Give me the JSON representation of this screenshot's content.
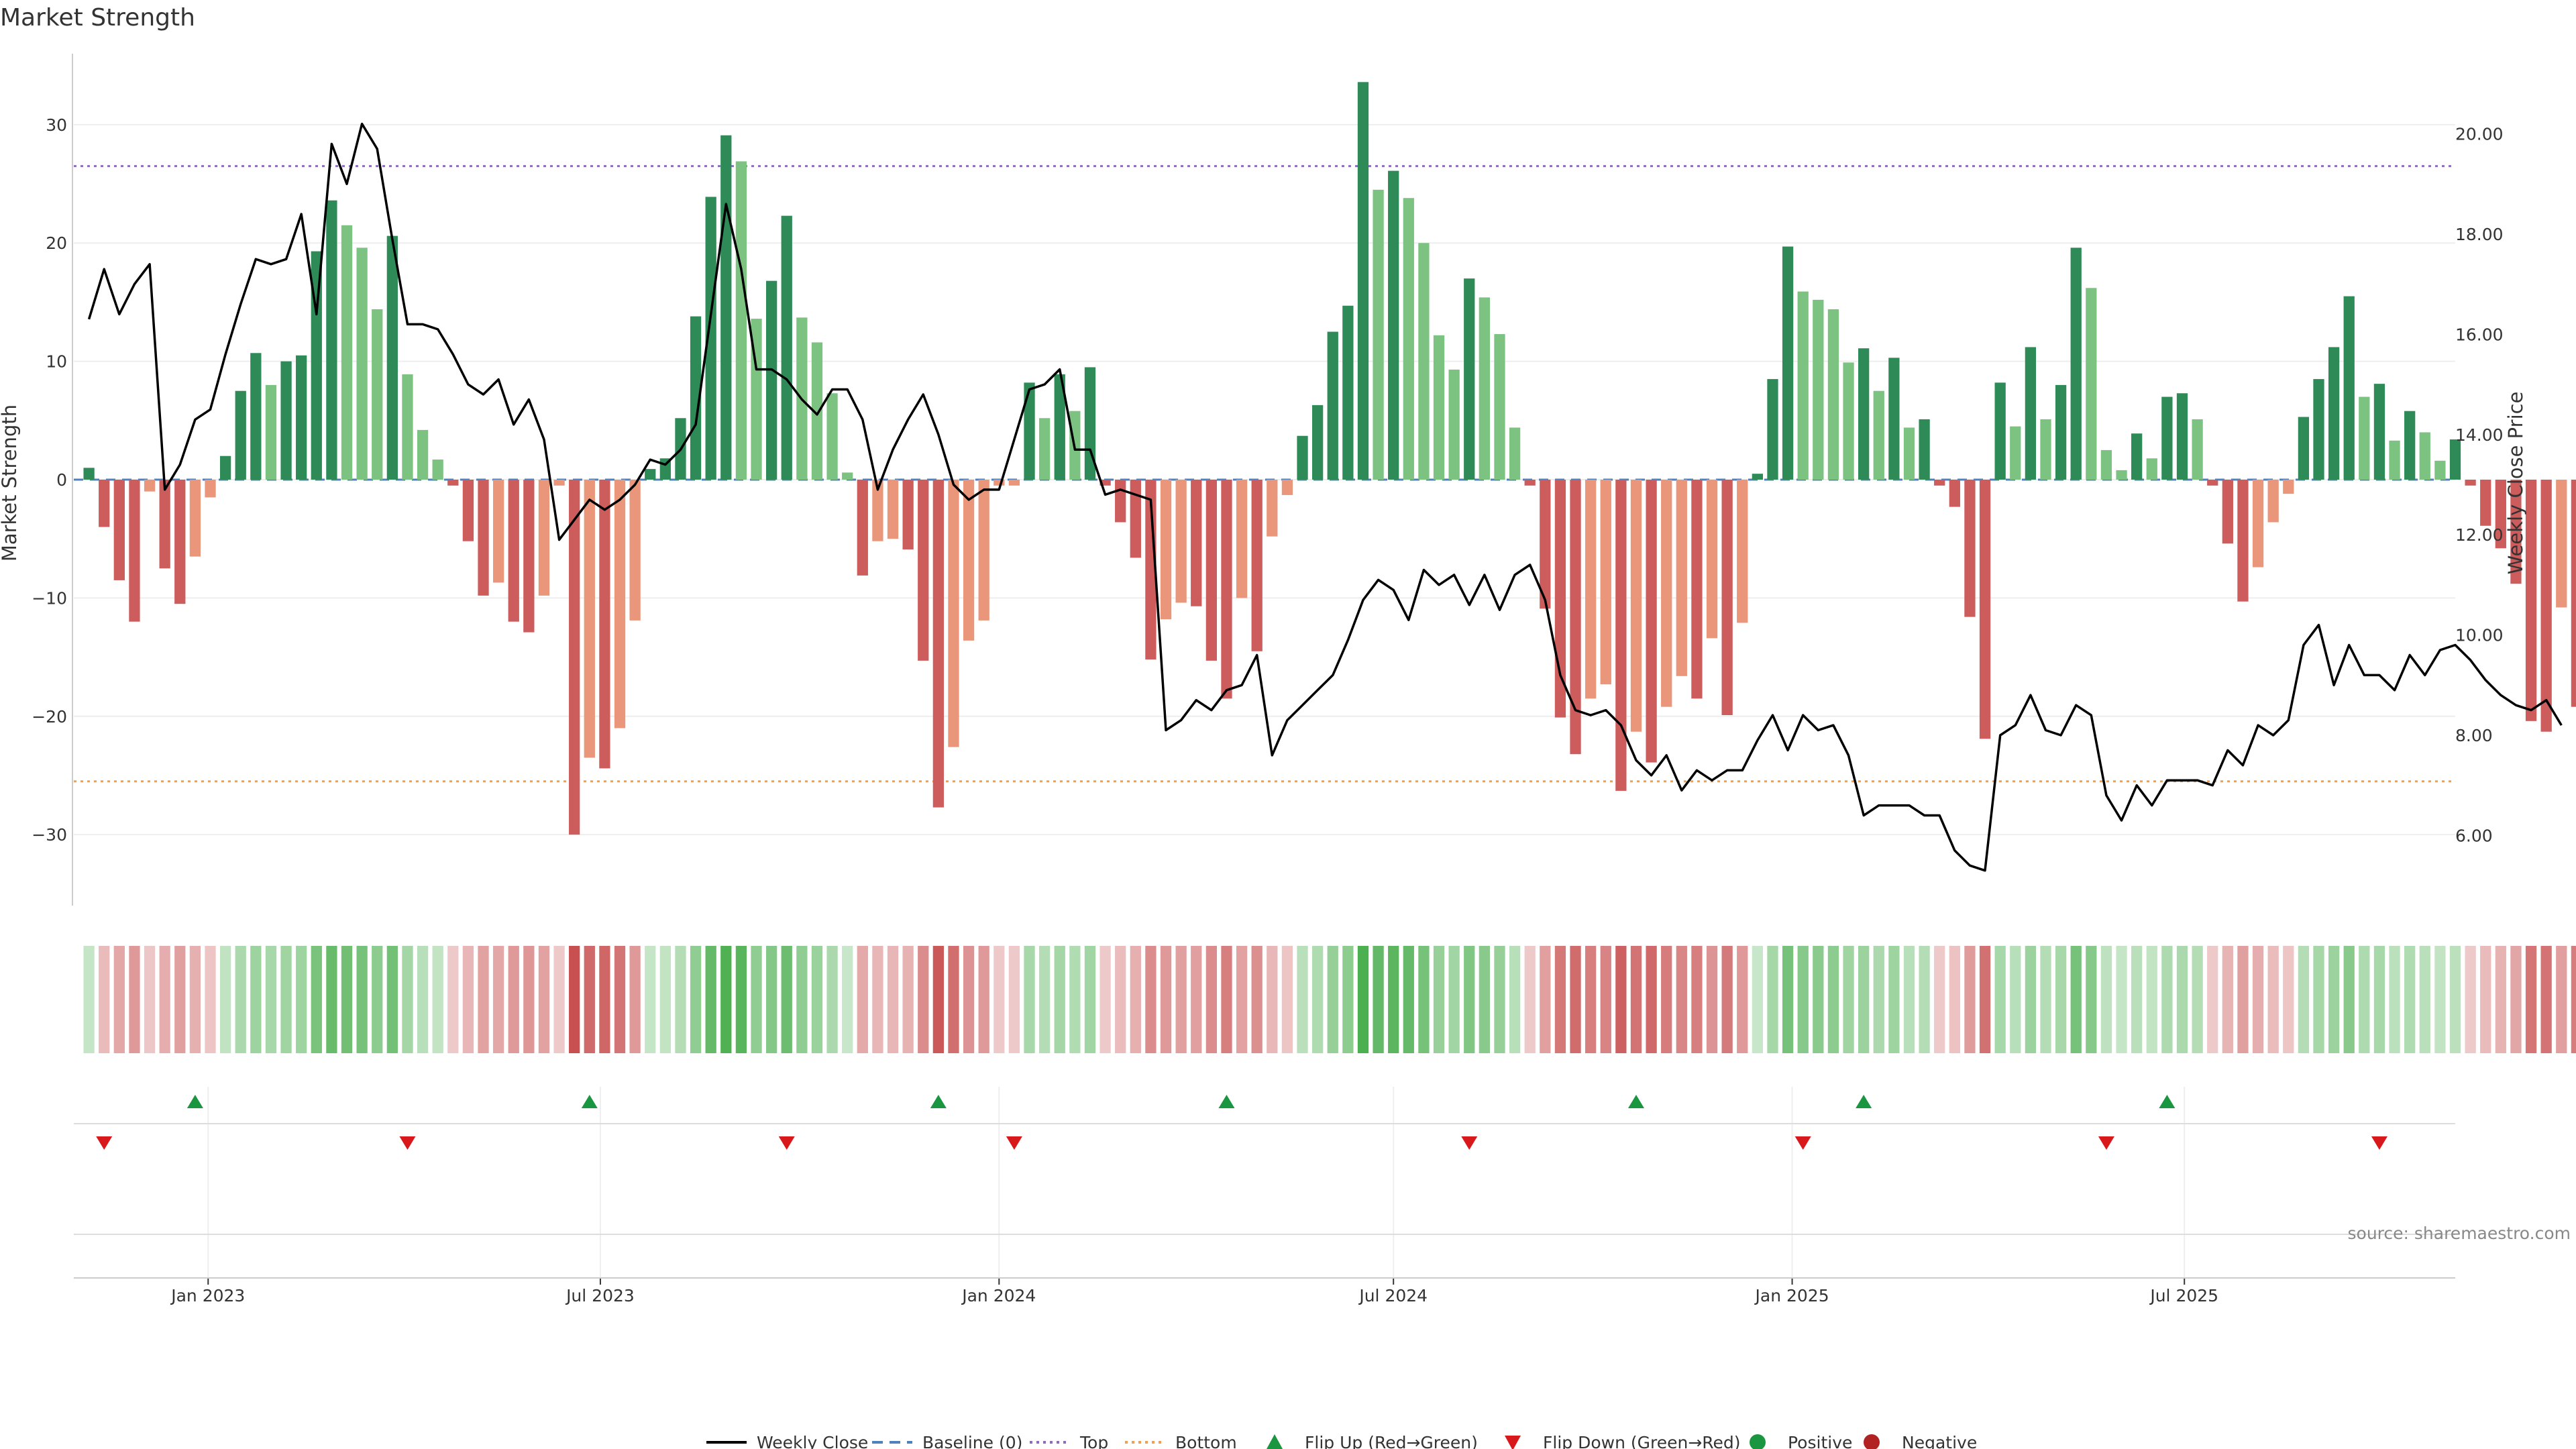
{
  "title": "Market Strength",
  "source_label": "source: sharemaestro.com",
  "colors": {
    "strong_green": "#2e8b57",
    "light_green": "#7cc382",
    "strong_red": "#cd5c5c",
    "light_red": "#e9967a",
    "price_line": "#000000",
    "baseline": "#4f81bd",
    "top_line": "#8e6bbf",
    "bottom_line": "#f0a050",
    "flip_up": "#1a9641",
    "flip_down": "#d7191c",
    "positive": "#1a9641",
    "negative": "#b22222",
    "grid": "#eeeeee"
  },
  "chart_data": {
    "type": "bar",
    "x_axis": {
      "type": "date",
      "range": [
        "2022-10-31",
        "2025-11-03"
      ],
      "ticks": [
        {
          "date": "2023-01-01",
          "label": "Jan 2023"
        },
        {
          "date": "2023-07-01",
          "label": "Jul 2023"
        },
        {
          "date": "2024-01-01",
          "label": "Jan 2024"
        },
        {
          "date": "2024-07-01",
          "label": "Jul 2024"
        },
        {
          "date": "2025-01-01",
          "label": "Jan 2025"
        },
        {
          "date": "2025-07-01",
          "label": "Jul 2025"
        }
      ]
    },
    "y_left": {
      "label": "Market Strength",
      "range": [
        -36,
        36
      ],
      "ticks": [
        -30,
        -20,
        -10,
        0,
        10,
        20,
        30
      ],
      "tick_labels": [
        "−30",
        "−20",
        "−10",
        "0",
        "10",
        "20",
        "30"
      ]
    },
    "y_right": {
      "label": "Weekly Close Price",
      "range": [
        4.6,
        21.6
      ],
      "ticks": [
        6,
        8,
        10,
        12,
        14,
        16,
        18,
        20
      ],
      "tick_labels": [
        "6.00",
        "8.00",
        "10.00",
        "12.00",
        "14.00",
        "16.00",
        "18.00",
        "20.00"
      ]
    },
    "reference_lines": {
      "baseline": 0,
      "top": 26.5,
      "bottom": -25.5
    },
    "grid": true,
    "legend_position": "bottom-center",
    "legend": [
      {
        "label": "Weekly Close",
        "symbol": "line",
        "color": "#000000"
      },
      {
        "label": "Baseline (0)",
        "symbol": "dashed",
        "color": "#4f81bd"
      },
      {
        "label": "Top",
        "symbol": "dotted",
        "color": "#8e6bbf"
      },
      {
        "label": "Bottom",
        "symbol": "dotted",
        "color": "#f0a050"
      },
      {
        "label": "Flip Up (Red→Green)",
        "symbol": "triangle-up",
        "color": "#1a9641"
      },
      {
        "label": "Flip Down (Green→Red)",
        "symbol": "triangle-down",
        "color": "#d7191c"
      },
      {
        "label": "Positive",
        "symbol": "circle",
        "color": "#1a9641"
      },
      {
        "label": "Negative",
        "symbol": "circle",
        "color": "#b22222"
      }
    ],
    "series": [
      {
        "name": "Market Strength",
        "type": "bar",
        "start_date": "2022-11-07",
        "interval_days": 7,
        "values": [
          1,
          -4,
          -8.5,
          -12,
          -1,
          -7.5,
          -10.5,
          -6.5,
          -1.5,
          2,
          7.5,
          10.7,
          8,
          10,
          10.5,
          19.3,
          23.6,
          21.5,
          19.6,
          14.4,
          20.6,
          8.9,
          4.2,
          1.7,
          -0.5,
          -5.2,
          -9.8,
          -8.7,
          -12,
          -12.9,
          -9.8,
          -0.5,
          -30,
          -23.5,
          -24.4,
          -21,
          -11.9,
          0.9,
          1.8,
          5.2,
          13.8,
          23.9,
          29.1,
          26.9,
          13.6,
          16.8,
          22.3,
          13.7,
          11.6,
          7.3,
          0.6,
          -8.1,
          -5.2,
          -5,
          -5.9,
          -15.3,
          -27.7,
          -22.6,
          -13.6,
          -11.9,
          -0.5,
          -0.5,
          8.2,
          5.2,
          8.9,
          5.8,
          9.5,
          -0.5,
          -3.6,
          -6.6,
          -15.2,
          -11.8,
          -10.4,
          -10.7,
          -15.3,
          -18.5,
          -10,
          -14.5,
          -4.8,
          -1.3,
          3.7,
          6.3,
          12.5,
          14.7,
          33.6,
          24.5,
          26.1,
          23.8,
          20,
          12.2,
          9.3,
          17,
          15.4,
          12.3,
          4.4,
          -0.5,
          -10.9,
          -20.1,
          -23.2,
          -18.5,
          -17.3,
          -26.3,
          -21.3,
          -23.9,
          -19.2,
          -16.6,
          -18.5,
          -13.4,
          -19.9,
          -12.1,
          0.5,
          8.5,
          19.7,
          15.9,
          15.2,
          14.4,
          9.9,
          11.1,
          7.5,
          10.3,
          4.4,
          5.1,
          -0.5,
          -2.3,
          -11.6,
          -21.9,
          8.2,
          4.5,
          11.2,
          5.1,
          8,
          19.6,
          16.2,
          2.5,
          0.8,
          3.9,
          1.8,
          7,
          7.3,
          5.1,
          -0.5,
          -5.4,
          -10.3,
          -7.4,
          -3.6,
          -1.2,
          5.3,
          8.5,
          11.2,
          15.5,
          7,
          8.1,
          3.3,
          5.8,
          4,
          1.6,
          3.4,
          -0.5,
          -3.9,
          -5.8,
          -8.8,
          -20.4,
          -21.3,
          -10.8,
          -19.2
        ]
      },
      {
        "name": "Weekly Close",
        "type": "line",
        "start_date": "2022-11-07",
        "interval_days": 7,
        "values": [
          16.3,
          17.3,
          16.4,
          17.0,
          17.4,
          12.9,
          13.4,
          14.3,
          14.5,
          15.6,
          16.6,
          17.5,
          17.4,
          17.5,
          18.4,
          16.4,
          19.8,
          19.0,
          20.2,
          19.7,
          17.9,
          16.2,
          16.2,
          16.1,
          15.6,
          15.0,
          14.8,
          15.1,
          14.2,
          14.7,
          13.9,
          11.9,
          12.3,
          12.7,
          12.5,
          12.7,
          13.0,
          13.5,
          13.4,
          13.7,
          14.2,
          16.4,
          18.6,
          17.3,
          15.3,
          15.3,
          15.1,
          14.7,
          14.4,
          14.9,
          14.9,
          14.3,
          12.9,
          13.7,
          14.3,
          14.8,
          14.0,
          13.0,
          12.7,
          12.9,
          12.9,
          13.9,
          14.9,
          15.0,
          15.3,
          13.7,
          13.7,
          12.8,
          12.9,
          12.8,
          12.7,
          8.1,
          8.3,
          8.7,
          8.5,
          8.9,
          9.0,
          9.6,
          7.6,
          8.3,
          8.6,
          8.9,
          9.2,
          9.9,
          10.7,
          11.1,
          10.9,
          10.3,
          11.3,
          11.0,
          11.2,
          10.6,
          11.2,
          10.5,
          11.2,
          11.4,
          10.7,
          9.2,
          8.5,
          8.4,
          8.5,
          8.2,
          7.5,
          7.2,
          7.6,
          6.9,
          7.3,
          7.1,
          7.3,
          7.3,
          7.9,
          8.4,
          7.7,
          8.4,
          8.1,
          8.2,
          7.6,
          6.4,
          6.6,
          6.6,
          6.6,
          6.4,
          6.4,
          5.7,
          5.4,
          5.3,
          8.0,
          8.2,
          8.8,
          8.1,
          8.0,
          8.6,
          8.4,
          6.8,
          6.3,
          7.0,
          6.6,
          7.1,
          7.1,
          7.1,
          7.0,
          7.7,
          7.4,
          8.2,
          8.0,
          8.3,
          9.8,
          10.2,
          9.0,
          9.8,
          9.2,
          9.2,
          8.9,
          9.6,
          9.2,
          9.7,
          9.8,
          9.5,
          9.1,
          8.8,
          8.6,
          8.5,
          8.7,
          8.2
        ]
      }
    ],
    "flip_up_dates": [
      "2022-12-26",
      "2023-06-26",
      "2023-12-04",
      "2024-04-15",
      "2024-10-21",
      "2025-02-03",
      "2025-06-23"
    ],
    "flip_down_dates": [
      "2022-11-14",
      "2023-04-03",
      "2023-09-25",
      "2024-01-08",
      "2024-08-05",
      "2025-01-06",
      "2025-05-26",
      "2025-09-29"
    ]
  }
}
